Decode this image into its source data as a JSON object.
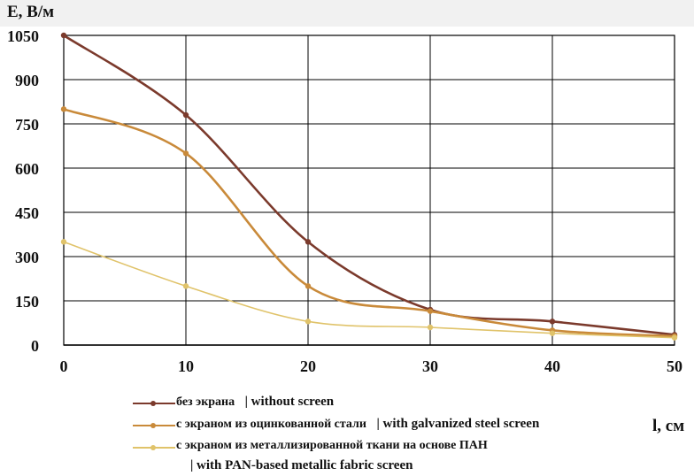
{
  "chart_data": {
    "type": "line",
    "ylabel": "E, В/м",
    "xlabel": "l, см",
    "xlim": [
      0,
      50
    ],
    "ylim": [
      0,
      1050
    ],
    "x_ticks": [
      0,
      10,
      20,
      30,
      40,
      50
    ],
    "y_ticks": [
      0,
      150,
      300,
      450,
      600,
      750,
      900,
      1050
    ],
    "grid": true,
    "legend_position": "bottom",
    "x": [
      0,
      10,
      20,
      30,
      40,
      50
    ],
    "series": [
      {
        "name_ru": "без экрана",
        "name_en": "| without screen",
        "color": "#7b3a2c",
        "values": [
          1050,
          780,
          350,
          120,
          80,
          35
        ]
      },
      {
        "name_ru": "с экраном из оцинкованной стали",
        "name_en": "| with galvanized steel screen",
        "color": "#c98a3a",
        "values": [
          800,
          650,
          200,
          115,
          50,
          30
        ]
      },
      {
        "name_ru": "с экраном из металлизированной ткани на основе ПАН",
        "name_en": "| with PAN-based metallic fabric screen",
        "color": "#e0c36a",
        "values": [
          350,
          200,
          80,
          60,
          40,
          25
        ]
      }
    ]
  }
}
